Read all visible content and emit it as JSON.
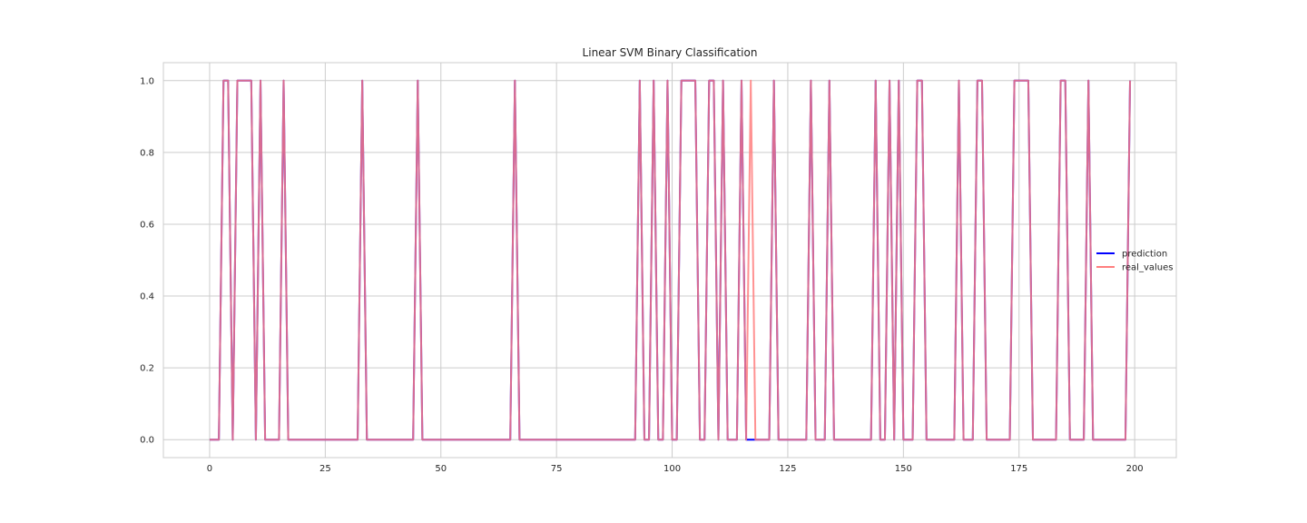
{
  "chart_data": {
    "type": "line",
    "title": "Linear SVM Binary Classification",
    "xlabel": "",
    "ylabel": "",
    "xlim": [
      -10,
      209
    ],
    "ylim": [
      -0.05,
      1.05
    ],
    "xticks": [
      0,
      25,
      50,
      75,
      100,
      125,
      150,
      175,
      200
    ],
    "yticks": [
      0.0,
      0.2,
      0.4,
      0.6,
      0.8,
      1.0
    ],
    "grid": true,
    "legend_position": "right",
    "series": [
      {
        "name": "prediction",
        "color": "#0000ff",
        "ones": [
          3,
          4,
          6,
          7,
          8,
          9,
          11,
          16,
          33,
          45,
          66,
          93,
          96,
          99,
          102,
          103,
          104,
          105,
          108,
          109,
          111,
          115,
          122,
          130,
          134,
          144,
          147,
          149,
          153,
          154,
          162,
          166,
          167,
          174,
          175,
          176,
          177,
          184,
          185,
          190,
          199
        ]
      },
      {
        "name": "real_values",
        "color": "#ff7f7f",
        "ones": [
          3,
          4,
          6,
          7,
          8,
          9,
          11,
          16,
          33,
          45,
          66,
          93,
          96,
          99,
          102,
          103,
          104,
          105,
          108,
          109,
          111,
          115,
          117,
          122,
          130,
          134,
          144,
          147,
          149,
          153,
          154,
          162,
          166,
          167,
          174,
          175,
          176,
          177,
          184,
          185,
          190,
          199
        ]
      }
    ],
    "n_points": 200
  }
}
